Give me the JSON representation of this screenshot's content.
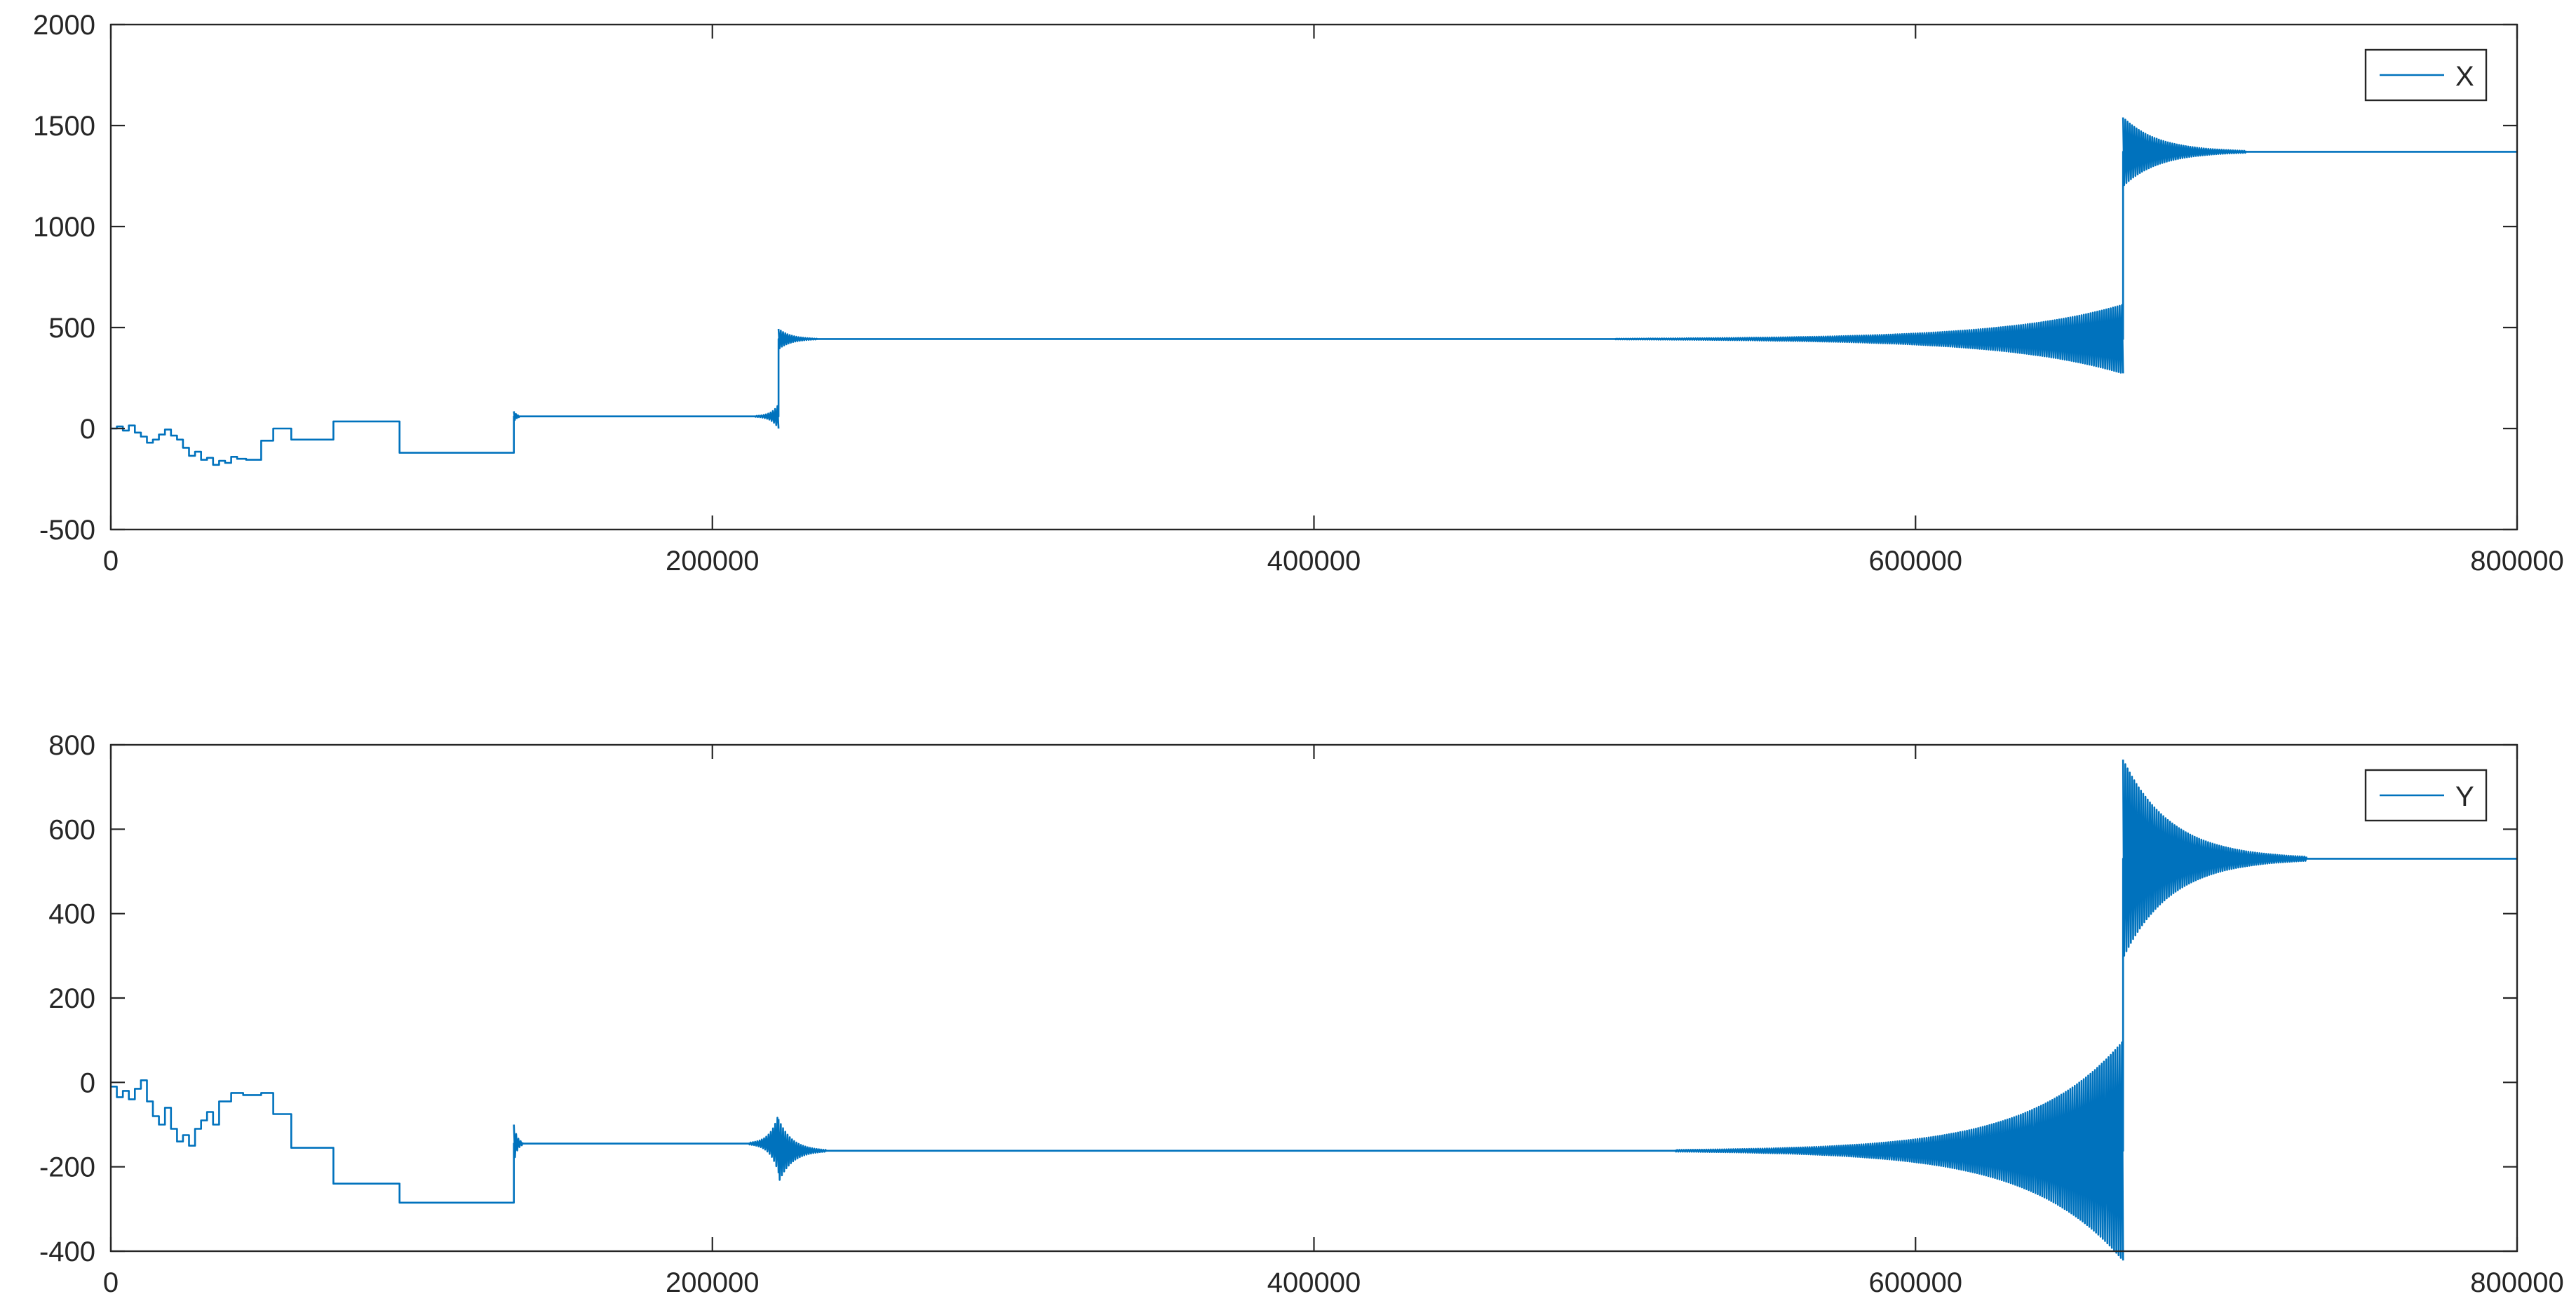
{
  "chart_data": [
    {
      "type": "line",
      "title": "",
      "xlabel": "",
      "ylabel": "",
      "xlim": [
        0,
        800000
      ],
      "ylim": [
        -500,
        2000
      ],
      "xticks": [
        0,
        200000,
        400000,
        600000,
        800000
      ],
      "xtick_labels": [
        "0",
        "200000",
        "400000",
        "600000",
        "800000"
      ],
      "yticks": [
        -500,
        0,
        500,
        1000,
        1500,
        2000
      ],
      "ytick_labels": [
        "-500",
        "0",
        "500",
        "1000",
        "1500",
        "2000"
      ],
      "grid": false,
      "legend_position": "top-right",
      "color": "#0072BD",
      "series": [
        {
          "name": "X",
          "segments": [
            {
              "x0": 0,
              "x1": 2000,
              "y": 0
            },
            {
              "x0": 2000,
              "x1": 4000,
              "y": 10
            },
            {
              "x0": 4000,
              "x1": 6000,
              "y": -10
            },
            {
              "x0": 6000,
              "x1": 8000,
              "y": 15
            },
            {
              "x0": 8000,
              "x1": 10000,
              "y": -20
            },
            {
              "x0": 10000,
              "x1": 12000,
              "y": -40
            },
            {
              "x0": 12000,
              "x1": 14000,
              "y": -70
            },
            {
              "x0": 14000,
              "x1": 16000,
              "y": -55
            },
            {
              "x0": 16000,
              "x1": 18000,
              "y": -30
            },
            {
              "x0": 18000,
              "x1": 20000,
              "y": -5
            },
            {
              "x0": 20000,
              "x1": 22000,
              "y": -35
            },
            {
              "x0": 22000,
              "x1": 24000,
              "y": -55
            },
            {
              "x0": 24000,
              "x1": 26000,
              "y": -95
            },
            {
              "x0": 26000,
              "x1": 28000,
              "y": -135
            },
            {
              "x0": 28000,
              "x1": 30000,
              "y": -115
            },
            {
              "x0": 30000,
              "x1": 32000,
              "y": -155
            },
            {
              "x0": 32000,
              "x1": 34000,
              "y": -145
            },
            {
              "x0": 34000,
              "x1": 36000,
              "y": -180
            },
            {
              "x0": 36000,
              "x1": 38000,
              "y": -160
            },
            {
              "x0": 38000,
              "x1": 40000,
              "y": -170
            },
            {
              "x0": 40000,
              "x1": 42000,
              "y": -140
            },
            {
              "x0": 42000,
              "x1": 45000,
              "y": -150
            },
            {
              "x0": 45000,
              "x1": 50000,
              "y": -155
            },
            {
              "x0": 50000,
              "x1": 54000,
              "y": -60
            },
            {
              "x0": 54000,
              "x1": 60000,
              "y": 0
            },
            {
              "x0": 60000,
              "x1": 74000,
              "y": -55
            },
            {
              "x0": 74000,
              "x1": 96000,
              "y": 35
            },
            {
              "x0": 96000,
              "x1": 134000,
              "y": -120
            },
            {
              "x0": 134000,
              "x1": 222000,
              "y": 60
            },
            {
              "x0": 222000,
              "x1": 669000,
              "y": 443
            },
            {
              "x0": 669000,
              "x1": 800000,
              "y": 1370
            }
          ],
          "oscillations": [
            {
              "x0": 134000,
              "x1": 136000,
              "center": 60,
              "amp0": 25,
              "amp1": 3
            },
            {
              "x0": 214000,
              "x1": 222000,
              "center": 60,
              "amp0": 2,
              "amp1": 60
            },
            {
              "x0": 222000,
              "x1": 235000,
              "center": 443,
              "amp0": 50,
              "amp1": 2
            },
            {
              "x0": 500000,
              "x1": 669000,
              "center": 443,
              "amp0": 2,
              "amp1": 170
            },
            {
              "x0": 669000,
              "x1": 710000,
              "center": 1370,
              "amp0": 170,
              "amp1": 5
            }
          ]
        }
      ]
    },
    {
      "type": "line",
      "title": "",
      "xlabel": "",
      "ylabel": "",
      "xlim": [
        0,
        800000
      ],
      "ylim": [
        -400,
        800
      ],
      "xticks": [
        0,
        200000,
        400000,
        600000,
        800000
      ],
      "xtick_labels": [
        "0",
        "200000",
        "400000",
        "600000",
        "800000"
      ],
      "yticks": [
        -400,
        -200,
        0,
        200,
        400,
        600,
        800
      ],
      "ytick_labels": [
        "-400",
        "-200",
        "0",
        "200",
        "400",
        "600",
        "800"
      ],
      "grid": false,
      "legend_position": "top-right",
      "color": "#0072BD",
      "series": [
        {
          "name": "Y",
          "segments": [
            {
              "x0": 0,
              "x1": 2000,
              "y": -10
            },
            {
              "x0": 2000,
              "x1": 4000,
              "y": -35
            },
            {
              "x0": 4000,
              "x1": 6000,
              "y": -20
            },
            {
              "x0": 6000,
              "x1": 8000,
              "y": -40
            },
            {
              "x0": 8000,
              "x1": 10000,
              "y": -15
            },
            {
              "x0": 10000,
              "x1": 12000,
              "y": 5
            },
            {
              "x0": 12000,
              "x1": 14000,
              "y": -45
            },
            {
              "x0": 14000,
              "x1": 16000,
              "y": -80
            },
            {
              "x0": 16000,
              "x1": 18000,
              "y": -100
            },
            {
              "x0": 18000,
              "x1": 20000,
              "y": -60
            },
            {
              "x0": 20000,
              "x1": 22000,
              "y": -110
            },
            {
              "x0": 22000,
              "x1": 24000,
              "y": -140
            },
            {
              "x0": 24000,
              "x1": 26000,
              "y": -125
            },
            {
              "x0": 26000,
              "x1": 28000,
              "y": -150
            },
            {
              "x0": 28000,
              "x1": 30000,
              "y": -110
            },
            {
              "x0": 30000,
              "x1": 32000,
              "y": -90
            },
            {
              "x0": 32000,
              "x1": 34000,
              "y": -70
            },
            {
              "x0": 34000,
              "x1": 36000,
              "y": -100
            },
            {
              "x0": 36000,
              "x1": 40000,
              "y": -45
            },
            {
              "x0": 40000,
              "x1": 44000,
              "y": -25
            },
            {
              "x0": 44000,
              "x1": 50000,
              "y": -30
            },
            {
              "x0": 50000,
              "x1": 54000,
              "y": -25
            },
            {
              "x0": 54000,
              "x1": 60000,
              "y": -75
            },
            {
              "x0": 60000,
              "x1": 74000,
              "y": -155
            },
            {
              "x0": 74000,
              "x1": 96000,
              "y": -240
            },
            {
              "x0": 96000,
              "x1": 134000,
              "y": -285
            },
            {
              "x0": 134000,
              "x1": 222000,
              "y": -145
            },
            {
              "x0": 222000,
              "x1": 669000,
              "y": -162
            },
            {
              "x0": 669000,
              "x1": 800000,
              "y": 530
            }
          ],
          "oscillations": [
            {
              "x0": 134000,
              "x1": 137000,
              "center": -145,
              "amp0": 45,
              "amp1": 3
            },
            {
              "x0": 212000,
              "x1": 222000,
              "center": -145,
              "amp0": 2,
              "amp1": 70
            },
            {
              "x0": 222000,
              "x1": 238000,
              "center": -162,
              "amp0": 75,
              "amp1": 2
            },
            {
              "x0": 520000,
              "x1": 669000,
              "center": -162,
              "amp0": 2,
              "amp1": 260
            },
            {
              "x0": 669000,
              "x1": 730000,
              "center": 530,
              "amp0": 235,
              "amp1": 5
            }
          ]
        }
      ]
    }
  ]
}
